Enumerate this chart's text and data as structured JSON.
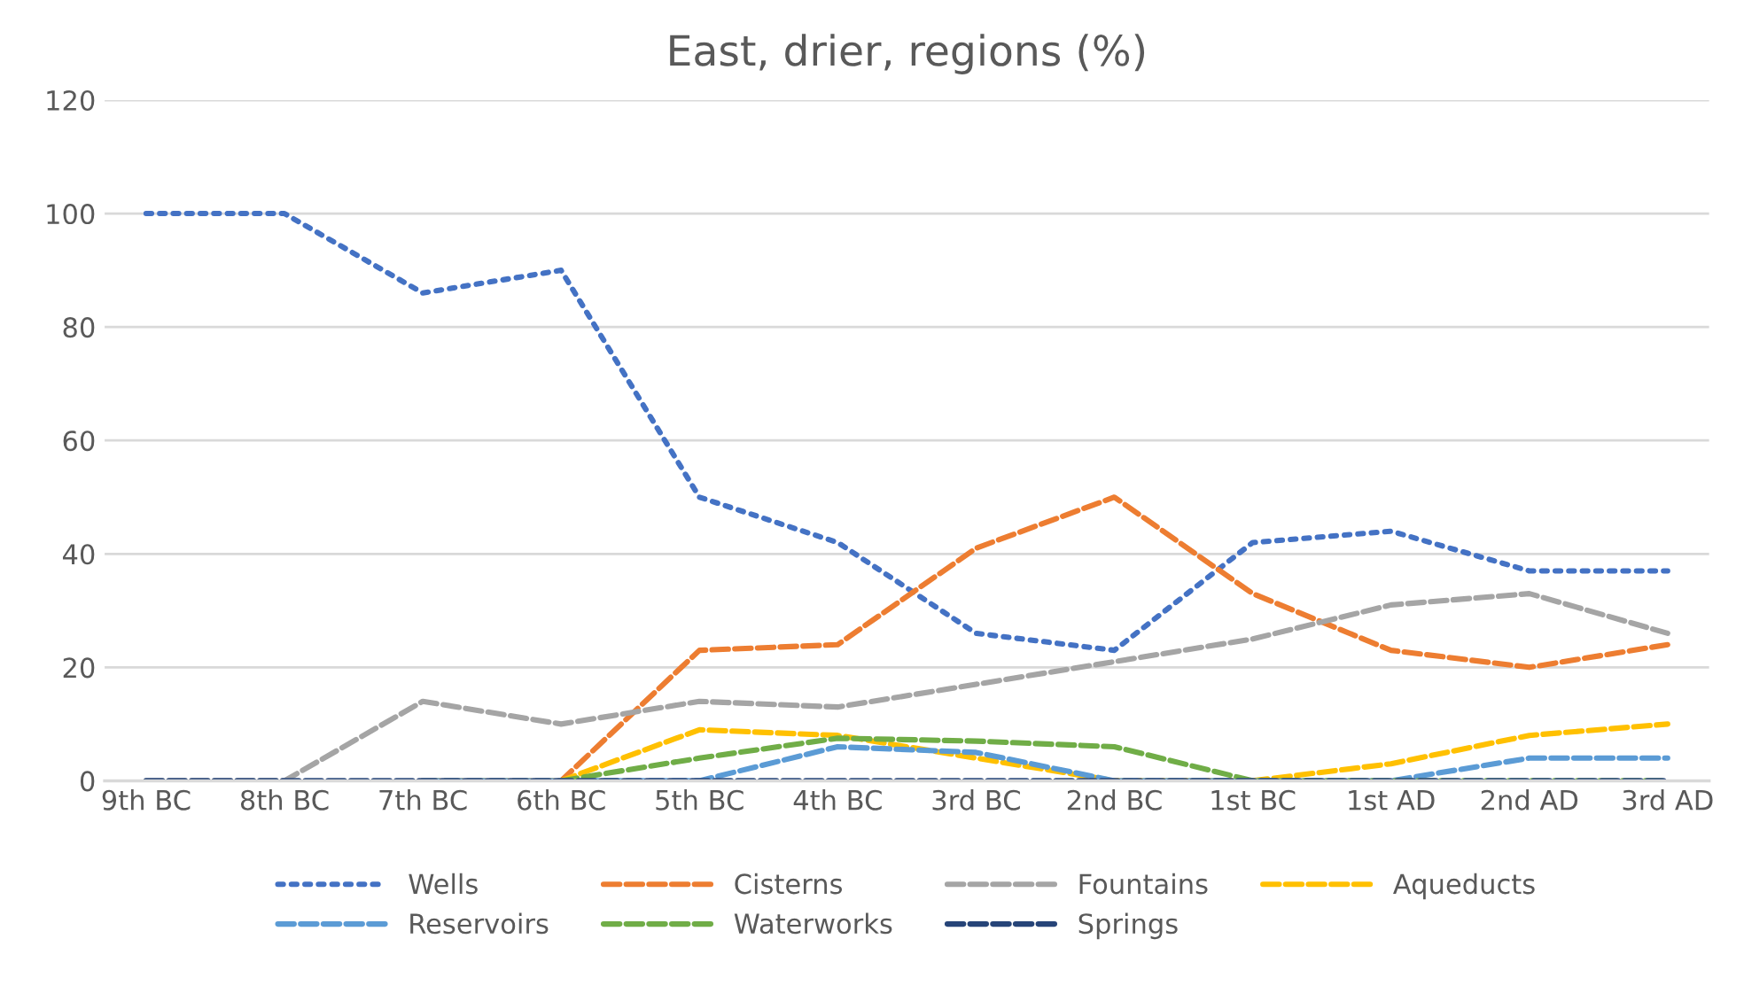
{
  "chart_data": {
    "type": "line",
    "title": "East, drier, regions (%)",
    "categories": [
      "9th BC",
      "8th BC",
      "7th BC",
      "6th BC",
      "5th BC",
      "4th BC",
      "3rd BC",
      "2nd BC",
      "1st BC",
      "1st AD",
      "2nd AD",
      "3rd AD"
    ],
    "series": [
      {
        "name": "Wells",
        "color": "#4472c4",
        "line_style": "dotted",
        "values": [
          100,
          100,
          86,
          90,
          50,
          42,
          26,
          23,
          42,
          44,
          37,
          37
        ]
      },
      {
        "name": "Cisterns",
        "color": "#ed7d31",
        "line_style": "dashed",
        "values": [
          null,
          null,
          0,
          0,
          23,
          24,
          41,
          50,
          33,
          23,
          20,
          24
        ]
      },
      {
        "name": "Fountains",
        "color": "#a5a5a5",
        "line_style": "dashed",
        "values": [
          0,
          0,
          14,
          10,
          14,
          13,
          17,
          21,
          25,
          31,
          33,
          26
        ]
      },
      {
        "name": "Aqueducts",
        "color": "#ffc000",
        "line_style": "dashed",
        "values": [
          null,
          null,
          0,
          0,
          9,
          8,
          4,
          0,
          0,
          3,
          8,
          10
        ]
      },
      {
        "name": "Reservoirs",
        "color": "#5b9bd5",
        "line_style": "dashed",
        "values": [
          null,
          null,
          0,
          0,
          0,
          6,
          5,
          0,
          0,
          0,
          4,
          4
        ]
      },
      {
        "name": "Waterworks",
        "color": "#70ad47",
        "line_style": "dashed",
        "values": [
          null,
          null,
          null,
          0,
          4,
          7.5,
          7,
          6,
          0,
          0,
          0,
          0
        ]
      },
      {
        "name": "Springs",
        "color": "#264478",
        "line_style": "dashed",
        "values": [
          0,
          0,
          0,
          0,
          0,
          0,
          0,
          0,
          0,
          0,
          0,
          0
        ]
      }
    ],
    "ylim": [
      0,
      120
    ],
    "yticks": [
      0,
      20,
      40,
      60,
      80,
      100,
      120
    ],
    "grid": "y",
    "legend": "bottom"
  }
}
